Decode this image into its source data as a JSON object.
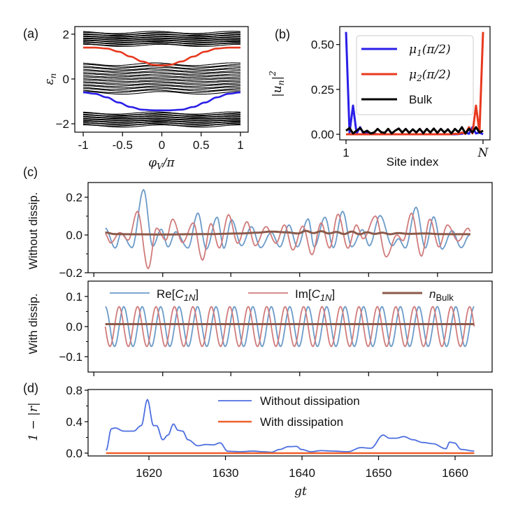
{
  "panel_labels": {
    "a": "(a)",
    "b": "(b)",
    "c": "(c)",
    "d": "(d)"
  },
  "chart_data": [
    {
      "id": "a",
      "type": "line",
      "title": "",
      "xlabel": {
        "base": "φ",
        "sub": "V",
        "rest": "/π"
      },
      "ylabel": {
        "base": "ε",
        "sub": "n"
      },
      "xlim": [
        -1.107,
        1.098
      ],
      "ylim": [
        -2.375,
        2.34
      ],
      "xticks": [
        -1,
        -0.5,
        0,
        0.5,
        1
      ],
      "xtick_labels": [
        "-1",
        "-0.5",
        "0",
        "0.5",
        "1"
      ],
      "yticks": [
        -2,
        0,
        2
      ],
      "ytick_labels": [
        "−2",
        "0",
        "2"
      ],
      "bands": [
        {
          "name": "upper bulk band",
          "emin": 1.5,
          "emax": 2.08,
          "lines": 14,
          "wiggle": 0.05,
          "color": "#000000"
        },
        {
          "name": "middle bulk band",
          "emin": -0.62,
          "emax": 0.66,
          "lines": 20,
          "wiggle": 0.06,
          "color": "#000000"
        },
        {
          "name": "lower bulk band",
          "emin": -2.1,
          "emax": -1.52,
          "lines": 14,
          "wiggle": 0.05,
          "color": "#000000"
        }
      ],
      "series": [
        {
          "name": "upper edge state",
          "color": "#e8391f",
          "x": [
            -1,
            -0.85,
            -0.7,
            -0.55,
            -0.4,
            -0.25,
            -0.1,
            0,
            0.1,
            0.25,
            0.4,
            0.55,
            0.7,
            0.85,
            1
          ],
          "y": [
            1.4,
            1.4,
            1.36,
            1.22,
            1.0,
            0.78,
            0.63,
            0.6,
            0.63,
            0.78,
            1.0,
            1.22,
            1.36,
            1.4,
            1.4
          ]
        },
        {
          "name": "lower edge state",
          "color": "#2a1fe8",
          "x": [
            -1,
            -0.85,
            -0.7,
            -0.55,
            -0.4,
            -0.25,
            -0.1,
            0,
            0.1,
            0.25,
            0.4,
            0.55,
            0.7,
            0.85,
            1
          ],
          "y": [
            -0.6,
            -0.66,
            -0.82,
            -1.05,
            -1.25,
            -1.37,
            -1.4,
            -1.4,
            -1.4,
            -1.37,
            -1.25,
            -1.05,
            -0.82,
            -0.66,
            -0.6
          ]
        }
      ]
    },
    {
      "id": "b",
      "type": "line",
      "xlabel": "Site index",
      "ylabel": {
        "open": "|",
        "base": "u",
        "sub": "n",
        "close": "|",
        "sup": "2"
      },
      "xlim": [
        -0.79,
        42.0
      ],
      "ylim": [
        -0.031,
        0.6
      ],
      "xticks": [
        1,
        40
      ],
      "xtick_labels": [
        "1",
        "N"
      ],
      "yticks": [
        0,
        0.25,
        0.5
      ],
      "ytick_labels": [
        "0.00",
        "0.25",
        "0.50"
      ],
      "x": [
        1,
        2,
        3,
        4,
        5,
        6,
        7,
        8,
        9,
        10,
        11,
        12,
        13,
        14,
        15,
        16,
        17,
        18,
        19,
        20,
        21,
        22,
        23,
        24,
        25,
        26,
        27,
        28,
        29,
        30,
        31,
        32,
        33,
        34,
        35,
        36,
        37,
        38,
        39,
        40
      ],
      "legend_position": "upper-center",
      "series": [
        {
          "name": "mu1",
          "label": {
            "base": "μ",
            "sub": "1",
            "rest": "(π/2)"
          },
          "color": "#2a1fe8",
          "values": [
            0.57,
            0.01,
            0.16,
            0.005,
            0.04,
            0.003,
            0.01,
            0.001,
            0.003,
            0,
            0,
            0,
            0,
            0,
            0,
            0,
            0,
            0,
            0,
            0,
            0,
            0,
            0,
            0,
            0,
            0,
            0,
            0,
            0,
            0,
            0,
            0,
            0.001,
            0.003,
            0.01,
            0.003,
            0.04,
            0.005,
            0.01,
            0
          ]
        },
        {
          "name": "mu2",
          "label": {
            "base": "μ",
            "sub": "2",
            "rest": "(π/2)"
          },
          "color": "#e8391f",
          "values": [
            0,
            0,
            0,
            0,
            0,
            0,
            0,
            0,
            0,
            0,
            0,
            0,
            0,
            0,
            0,
            0,
            0,
            0,
            0,
            0,
            0,
            0,
            0,
            0,
            0,
            0,
            0,
            0,
            0,
            0,
            0,
            0.003,
            0.001,
            0.01,
            0.003,
            0.04,
            0.005,
            0.16,
            0.01,
            0.57
          ]
        },
        {
          "name": "bulk",
          "label": {
            "base": "Bulk"
          },
          "color": "#000000",
          "values": [
            0.02,
            0.035,
            0.005,
            0.02,
            0.035,
            0.01,
            0.02,
            0.005,
            0.01,
            0.03,
            0.012,
            0.008,
            0.03,
            0.005,
            0.02,
            0.032,
            0.01,
            0.03,
            0.008,
            0.028,
            0.01,
            0.03,
            0.006,
            0.03,
            0.01,
            0.032,
            0.008,
            0.03,
            0.01,
            0.028,
            0.005,
            0.03,
            0.012,
            0.04,
            0.005,
            0.03,
            0.01,
            0.04,
            0.01,
            0.02
          ]
        }
      ]
    },
    {
      "id": "c-top",
      "type": "line",
      "ylabel": "Without dissip.",
      "xlim": [
        1612.05,
        1664.84
      ],
      "ylim": [
        -0.2,
        0.278
      ],
      "xticks": [
        1612.8,
        1621.8,
        1630.7,
        1639.7,
        1648.7,
        1657.7
      ],
      "yticks": [
        -0.2,
        0.0,
        0.2
      ],
      "ytick_labels": [
        "−0.2",
        "0.0",
        "0.2"
      ],
      "minor_yticks": [
        -0.1,
        0.1
      ],
      "series": [
        {
          "name": "Re[C1N]",
          "color": "#6b9ac8",
          "x": [
            1614.3,
            1615.6,
            1616.4,
            1617.8,
            1619.3,
            1620.5,
            1621.6,
            1622.5,
            1623.5,
            1625.1,
            1626.4,
            1627.5,
            1628.9,
            1629.8,
            1630.8,
            1632.1,
            1633.4,
            1634.6,
            1636.0,
            1637.1,
            1638.3,
            1639.4,
            1640.8,
            1641.6,
            1643.0,
            1644.1,
            1645.3,
            1646.5,
            1647.9,
            1648.8,
            1650.2,
            1651.8,
            1652.6,
            1653.5,
            1654.9,
            1656.1,
            1657.2,
            1658.3,
            1659.6,
            1660.8,
            1661.9
          ],
          "y": [
            0.036,
            -0.069,
            0.01,
            -0.067,
            0.24,
            -0.06,
            0.03,
            -0.063,
            0.017,
            -0.069,
            0.116,
            -0.075,
            0.094,
            -0.07,
            0.081,
            -0.057,
            0.044,
            -0.067,
            0.014,
            -0.063,
            0.053,
            -0.063,
            0.085,
            -0.063,
            0.094,
            -0.067,
            0.125,
            -0.063,
            0.028,
            -0.057,
            0.103,
            -0.057,
            -0.02,
            -0.069,
            0.147,
            -0.069,
            0.096,
            -0.075,
            0.023,
            -0.067,
            0.0
          ]
        },
        {
          "name": "Im[C1N]",
          "color": "#d07b7b",
          "x": [
            1614.3,
            1615.0,
            1616.2,
            1617.3,
            1618.5,
            1619.9,
            1621.0,
            1622.2,
            1623.1,
            1624.4,
            1625.8,
            1627.0,
            1628.1,
            1629.2,
            1630.4,
            1631.6,
            1632.8,
            1633.9,
            1635.3,
            1636.6,
            1637.7,
            1638.8,
            1640.1,
            1641.3,
            1642.5,
            1643.6,
            1644.7,
            1646.0,
            1647.1,
            1648.0,
            1649.6,
            1651.0,
            1652.4,
            1653.2,
            1654.3,
            1655.6,
            1656.7,
            1657.9,
            1659.0,
            1660.4,
            1661.7,
            1662.0
          ],
          "y": [
            0.005,
            -0.042,
            0.013,
            -0.027,
            0.125,
            -0.178,
            0.036,
            -0.027,
            0.084,
            -0.04,
            0.064,
            -0.133,
            0.06,
            -0.069,
            0.107,
            -0.044,
            0.07,
            -0.057,
            0.044,
            -0.044,
            0.053,
            -0.08,
            0.047,
            -0.104,
            0.064,
            -0.069,
            0.11,
            -0.07,
            0.053,
            -0.02,
            0.1,
            -0.116,
            0.0,
            -0.03,
            0.115,
            -0.112,
            0.084,
            -0.063,
            0.053,
            -0.032,
            0.036,
            0.02
          ]
        },
        {
          "name": "nBulk",
          "color": "#8b5a4a",
          "x": [
            1614.3,
            1615.5,
            1617,
            1622,
            1628,
            1632,
            1634,
            1636,
            1638,
            1639.5,
            1640.5,
            1641.5,
            1642.5,
            1643.5,
            1644.5,
            1645.5,
            1646.5,
            1647.5,
            1648.5,
            1649.5,
            1650.5,
            1651.5,
            1652.5,
            1654,
            1656,
            1658,
            1660,
            1662
          ],
          "y": [
            0.013,
            0.005,
            0.004,
            0.003,
            0.005,
            0.008,
            0.012,
            0.018,
            0.014,
            0.008,
            0.022,
            0.01,
            0.02,
            0.008,
            0.016,
            0.005,
            0.018,
            0.004,
            0.014,
            0.006,
            0.012,
            0.004,
            0.01,
            0.006,
            0.008,
            0.005,
            0.004,
            0.004
          ]
        }
      ]
    },
    {
      "id": "c-bottom",
      "type": "line",
      "ylabel": "With dissip.",
      "xlim": [
        1612.05,
        1664.84
      ],
      "ylim": [
        -0.151,
        0.151
      ],
      "xticks": [
        1612.8,
        1621.8,
        1630.7,
        1639.7,
        1648.7,
        1657.7
      ],
      "yticks": [
        -0.1,
        0.0,
        0.1
      ],
      "ytick_labels": [
        "−0.1",
        "0.0",
        "0.1"
      ],
      "minor_yticks": [
        -0.05,
        0.05
      ],
      "oscillation": {
        "t_start": 1614.3,
        "t_end": 1662.5,
        "amplitude": 0.066,
        "period": 2.41,
        "n_bulk": 0.008
      },
      "legend": [
        {
          "name": "Re[C1N]",
          "label": {
            "pre": "Re[",
            "base": "C",
            "sub": "1N",
            "post": "]"
          },
          "color": "#6b9ac8"
        },
        {
          "name": "Im[C1N]",
          "label": {
            "pre": "Im[",
            "base": "C",
            "sub": "1N",
            "post": "]"
          },
          "color": "#d07b7b"
        },
        {
          "name": "nBulk",
          "label": {
            "base": "n",
            "sub": "Bulk"
          },
          "color": "#8b5a4a"
        }
      ],
      "legend_position": "top"
    },
    {
      "id": "d",
      "type": "line",
      "xlabel": "gt",
      "ylabel": "1 − |r|",
      "xlim": [
        1612.05,
        1664.84
      ],
      "ylim": [
        -0.036,
        0.809
      ],
      "xticks": [
        1620,
        1630,
        1640,
        1650,
        1660
      ],
      "xtick_labels": [
        "1620",
        "1630",
        "1640",
        "1650",
        "1660"
      ],
      "yticks": [
        0.0,
        0.4,
        0.8
      ],
      "ytick_labels": [
        "0.0",
        "0.4",
        "0.8"
      ],
      "minor_yticks": [
        0.2,
        0.6
      ],
      "legend_position": "upper-center",
      "series": [
        {
          "name": "Without dissipation",
          "label": "Without dissipation",
          "color": "#4d6fe0",
          "x": [
            1614.4,
            1615.1,
            1615.6,
            1616.7,
            1618.0,
            1619.0,
            1619.8,
            1620.6,
            1621.0,
            1621.8,
            1622.5,
            1623.2,
            1623.8,
            1624.4,
            1625.1,
            1626.4,
            1627.5,
            1628.4,
            1629.3,
            1630.3,
            1631.9,
            1633.6,
            1634.9,
            1636.0,
            1637.1,
            1638.2,
            1639.3,
            1639.9,
            1641.2,
            1642.5,
            1644.0,
            1646.0,
            1647.7,
            1649.0,
            1650.6,
            1651.4,
            1652.3,
            1653.3,
            1654.5,
            1655.8,
            1657.1,
            1658.8,
            1659.3,
            1659.9,
            1660.8,
            1662.5
          ],
          "y": [
            0.035,
            0.31,
            0.32,
            0.28,
            0.28,
            0.35,
            0.68,
            0.35,
            0.35,
            0.17,
            0.23,
            0.37,
            0.29,
            0.28,
            0.17,
            0.094,
            0.11,
            0.105,
            0.13,
            0.024,
            0.018,
            0.026,
            0.018,
            0.012,
            0.047,
            0.082,
            0.085,
            0.047,
            0.018,
            0.032,
            0.026,
            0.018,
            0.07,
            0.062,
            0.23,
            0.19,
            0.19,
            0.21,
            0.17,
            0.135,
            0.12,
            0.056,
            0.14,
            0.13,
            0.047,
            0.026
          ]
        },
        {
          "name": "With dissipation",
          "label": "With dissipation",
          "color": "#f0602a",
          "x": [
            1614.4,
            1662.5
          ],
          "y": [
            0.0,
            0.0
          ]
        }
      ]
    }
  ]
}
